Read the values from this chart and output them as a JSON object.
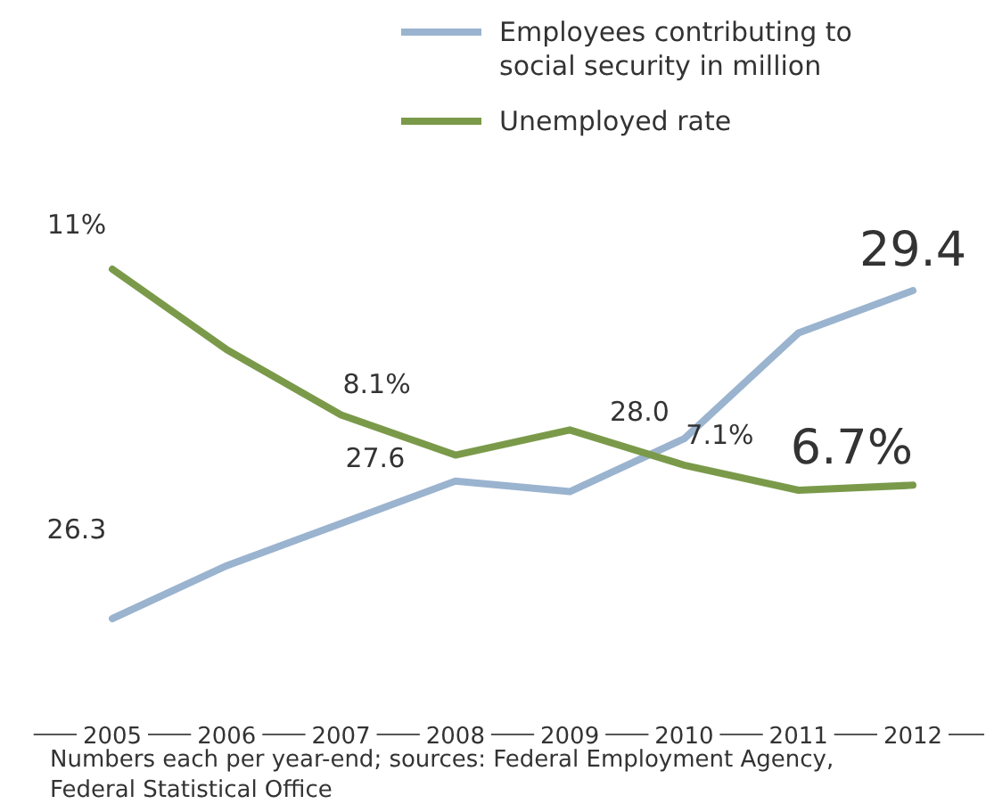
{
  "chart_data": {
    "type": "line",
    "categories": [
      "2005",
      "2006",
      "2007",
      "2008",
      "2009",
      "2010",
      "2011",
      "2012"
    ],
    "series": [
      {
        "name": "Employees contributing to social security in million",
        "color": "#9ab3cf",
        "values": [
          26.3,
          26.8,
          27.2,
          27.6,
          27.5,
          28.0,
          29.0,
          29.4
        ],
        "value_labels": [
          "26.3",
          null,
          null,
          "27.6",
          null,
          "28.0",
          null,
          "29.4"
        ]
      },
      {
        "name": "Unemployed rate",
        "color": "#7a9a4a",
        "axis": "y2",
        "values": [
          11,
          9.4,
          8.1,
          7.3,
          7.8,
          7.1,
          6.6,
          6.7
        ],
        "value_labels": [
          "11%",
          null,
          "8.1%",
          null,
          null,
          "7.1%",
          null,
          "6.7%"
        ]
      }
    ],
    "tick_labels": "x",
    "legend": "top right",
    "marker": "none",
    "line_style": "solid",
    "annotations": [
      "Numbers each per year-end; sources: Federal Employment Agency, Federal Statistical Office"
    ]
  }
}
